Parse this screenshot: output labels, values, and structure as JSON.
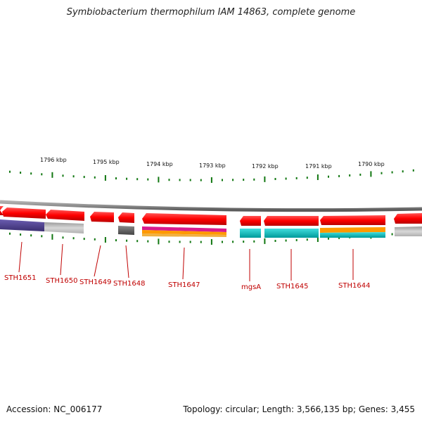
{
  "title": "Symbiobacterium thermophilum IAM 14863, complete genome",
  "footer": {
    "accession": "Accession: NC_006177",
    "summary": "Topology: circular; Length: 3,566,135 bp; Genes: 3,455"
  },
  "ruler": {
    "labels": [
      "1796 kbp",
      "1795 kbp",
      "1794 kbp",
      "1793 kbp",
      "1792 kbp",
      "1791 kbp",
      "1790 kbp"
    ]
  },
  "colors": {
    "backbone": "#8c8c8c",
    "gene_red": "#ff0000",
    "tick_green": "#117711",
    "label_red": "#c00000",
    "cog_purple": "#4b3c8c",
    "cog_lightgray": "#c4c4c4",
    "cog_darkgray": "#666666",
    "cog_magenta": "#d81b8c",
    "cog_orange": "#ff9900",
    "cog_cyan": "#00c0c0"
  },
  "genes": [
    {
      "label": "STH1651"
    },
    {
      "label": "STH1650"
    },
    {
      "label": "STH1649"
    },
    {
      "label": "STH1648"
    },
    {
      "label": "STH1647"
    },
    {
      "label": "mgsA"
    },
    {
      "label": "STH1645"
    },
    {
      "label": "STH1644"
    }
  ]
}
